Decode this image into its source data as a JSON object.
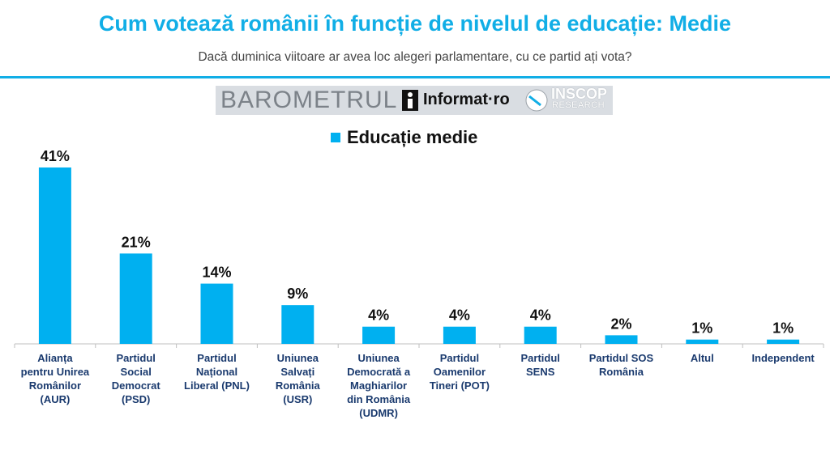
{
  "header": {
    "title": "Cum votează românii în funcție de nivelul de educație: Medie",
    "subtitle": "Dacă duminica viitoare ar avea loc alegeri parlamentare, cu ce partid ați vota?"
  },
  "logos": {
    "barometrul": "BAROMETRUL",
    "informat": "Informat·ro",
    "inscop": "INSCOP",
    "research": "RESEARCH"
  },
  "colors": {
    "accent": "#11aee6",
    "bar": "#00b0f0",
    "axis_text": "#1a3a6e"
  },
  "chart_data": {
    "type": "bar",
    "title": "Cum votează românii în funcție de nivelul de educație: Medie",
    "subtitle": "Dacă duminica viitoare ar avea loc alegeri parlamentare, cu ce partid ați vota?",
    "categories": [
      "Alianța pentru Unirea Românilor (AUR)",
      "Partidul Social Democrat (PSD)",
      "Partidul Național Liberal (PNL)",
      "Uniunea Salvați România (USR)",
      "Uniunea Democrată a Maghiarilor din România (UDMR)",
      "Partidul Oamenilor Tineri (POT)",
      "Partidul SENS",
      "Partidul SOS România",
      "Altul",
      "Independent"
    ],
    "category_lines": [
      [
        "Alianța",
        "pentru Unirea",
        "Românilor",
        "(AUR)"
      ],
      [
        "Partidul",
        "Social",
        "Democrat",
        "(PSD)"
      ],
      [
        "Partidul",
        "Național",
        "Liberal (PNL)"
      ],
      [
        "Uniunea",
        "Salvați",
        "România",
        "(USR)"
      ],
      [
        "Uniunea",
        "Democrată a",
        "Maghiarilor",
        "din România",
        "(UDMR)"
      ],
      [
        "Partidul",
        "Oamenilor",
        "Tineri (POT)"
      ],
      [
        "Partidul",
        "SENS"
      ],
      [
        "Partidul SOS",
        "România"
      ],
      [
        "Altul"
      ],
      [
        "Independent"
      ]
    ],
    "series": [
      {
        "name": "Educație medie",
        "values": [
          41,
          21,
          14,
          9,
          4,
          4,
          4,
          2,
          1,
          1
        ],
        "labels": [
          "41%",
          "21%",
          "14%",
          "9%",
          "4%",
          "4%",
          "4%",
          "2%",
          "1%",
          "1%"
        ]
      }
    ],
    "ylim": [
      0,
      41
    ],
    "unit": "%",
    "grid": false,
    "legend": "top-center"
  }
}
